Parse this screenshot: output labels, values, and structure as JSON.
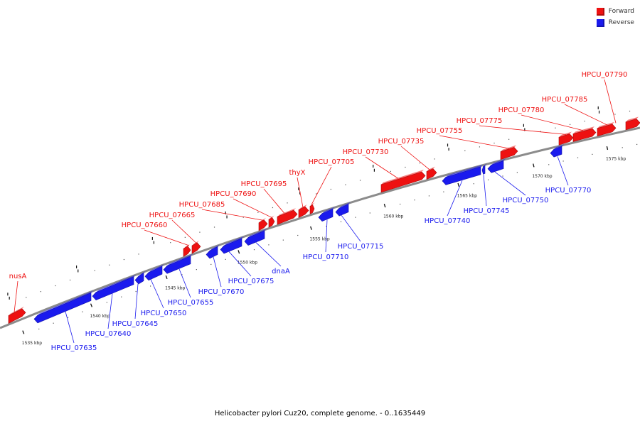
{
  "title": "Helicobacter pylori Cuz20, complete genome. - 0..1635449",
  "legend": {
    "forward": {
      "label": "Forward",
      "color": "#ee1111"
    },
    "reverse": {
      "label": "Reverse",
      "color": "#1a1aee"
    }
  },
  "backbone_color": "#8c8c8c",
  "ticks": [
    "1535 kbp",
    "1540 kbp",
    "1545 kbp",
    "1550 kbp",
    "1555 kbp",
    "1560 kbp",
    "1565 kbp",
    "1570 kbp",
    "1575 kbp"
  ],
  "genes": [
    {
      "name": "nusA",
      "strand": "forward"
    },
    {
      "name": "HPCU_07635",
      "strand": "reverse"
    },
    {
      "name": "HPCU_07640",
      "strand": "reverse"
    },
    {
      "name": "HPCU_07645",
      "strand": "reverse"
    },
    {
      "name": "HPCU_07650",
      "strand": "reverse"
    },
    {
      "name": "HPCU_07655",
      "strand": "reverse"
    },
    {
      "name": "HPCU_07660",
      "strand": "forward"
    },
    {
      "name": "HPCU_07665",
      "strand": "forward"
    },
    {
      "name": "HPCU_07670",
      "strand": "reverse"
    },
    {
      "name": "HPCU_07675",
      "strand": "reverse"
    },
    {
      "name": "dnaA",
      "strand": "reverse"
    },
    {
      "name": "HPCU_07685",
      "strand": "forward"
    },
    {
      "name": "HPCU_07690",
      "strand": "forward"
    },
    {
      "name": "HPCU_07695",
      "strand": "forward"
    },
    {
      "name": "thyX",
      "strand": "forward"
    },
    {
      "name": "HPCU_07705",
      "strand": "forward"
    },
    {
      "name": "HPCU_07710",
      "strand": "reverse"
    },
    {
      "name": "HPCU_07715",
      "strand": "reverse"
    },
    {
      "name": "HPCU_07730",
      "strand": "forward"
    },
    {
      "name": "HPCU_07735",
      "strand": "forward"
    },
    {
      "name": "HPCU_07740",
      "strand": "reverse"
    },
    {
      "name": "HPCU_07745",
      "strand": "reverse"
    },
    {
      "name": "HPCU_07750",
      "strand": "reverse"
    },
    {
      "name": "HPCU_07755",
      "strand": "forward"
    },
    {
      "name": "HPCU_07770",
      "strand": "reverse"
    },
    {
      "name": "HPCU_07775",
      "strand": "forward"
    },
    {
      "name": "HPCU_07780",
      "strand": "forward"
    },
    {
      "name": "HPCU_07785",
      "strand": "forward"
    },
    {
      "name": "HPCU_07790",
      "strand": "forward"
    }
  ]
}
